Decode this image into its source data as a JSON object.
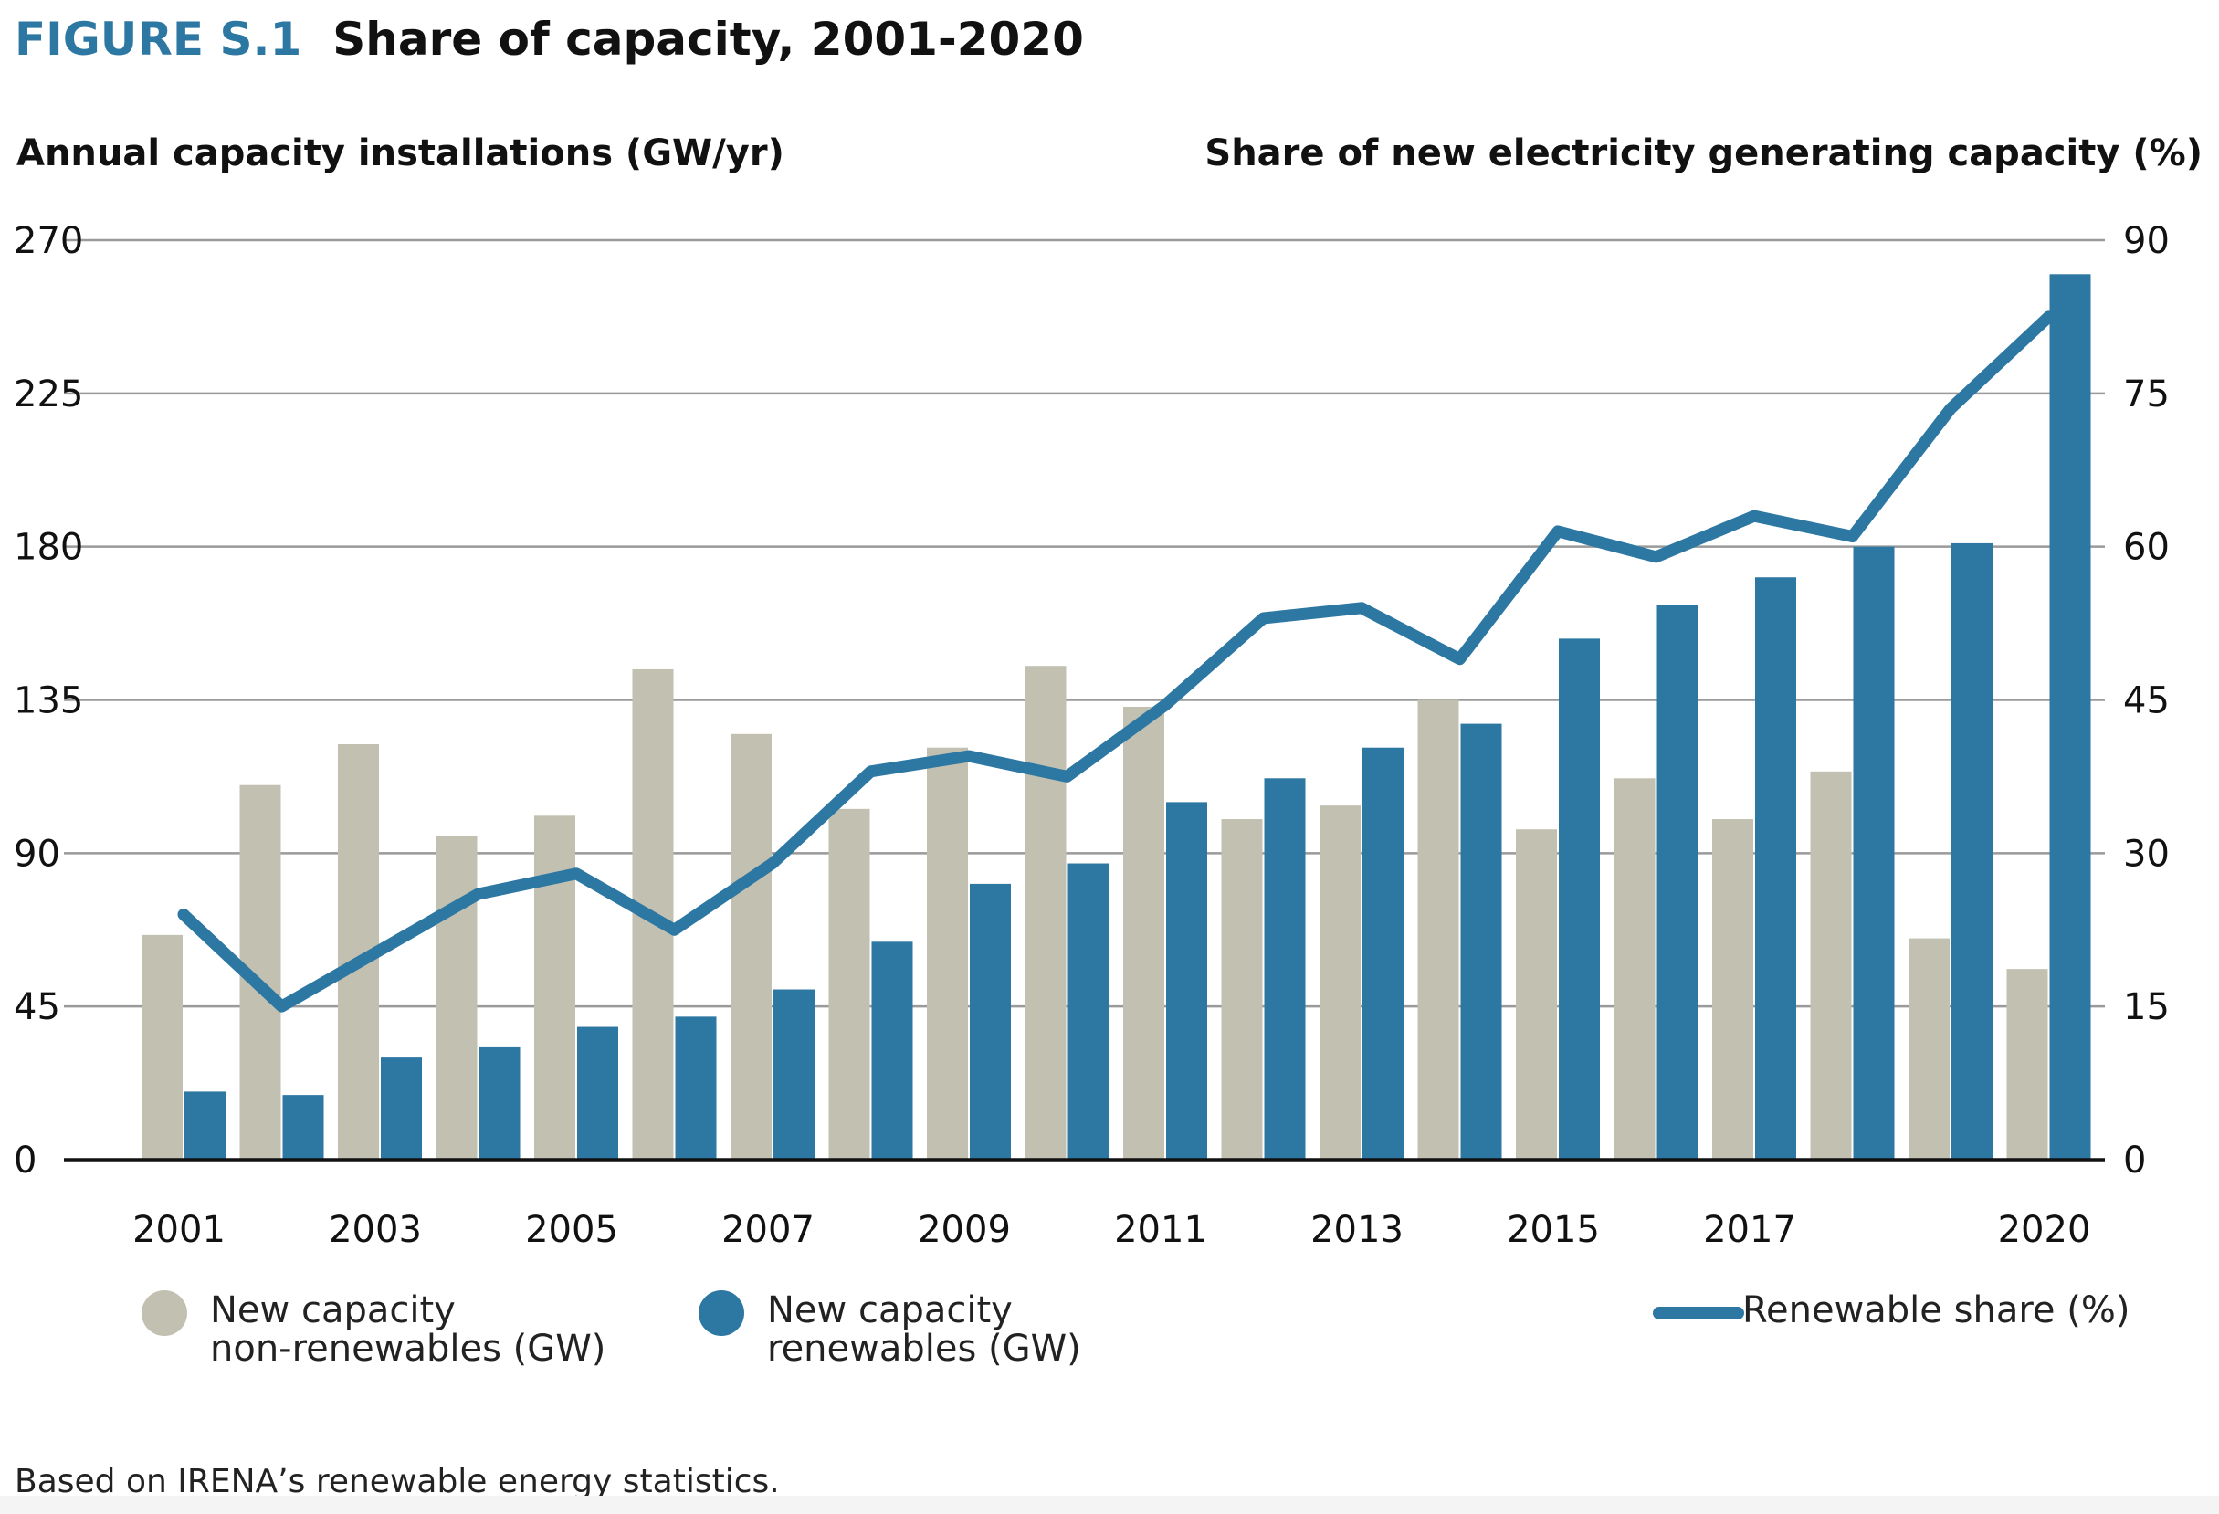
{
  "header": {
    "figure_label": "FIGURE S.1",
    "title": "Share of capacity, 2001-2020"
  },
  "note": "Based on IRENA’s renewable energy statistics.",
  "colors": {
    "non_renewable": "#c2c1b1",
    "renewable": "#2d77a3",
    "line": "#2d77a3",
    "grid": "#9a9a9a",
    "axis": "#111111"
  },
  "legend": {
    "non_renewable_line1": "New capacity",
    "non_renewable_line2": "non-renewables (GW)",
    "renewable_line1": "New capacity",
    "renewable_line2": "renewables (GW)",
    "share": "Renewable share (%)"
  },
  "chart_data": {
    "type": "bar",
    "ylabel_left": "Annual capacity installations (GW/yr)",
    "ylabel_right": "Share of new electricity generating capacity (%)",
    "ylim_left": [
      0,
      270
    ],
    "ylim_right": [
      0,
      90
    ],
    "yticks_left": [
      "0",
      "45",
      "90",
      "135",
      "180",
      "225",
      "270"
    ],
    "yticks_right": [
      "0",
      "15",
      "30",
      "45",
      "60",
      "75",
      "90"
    ],
    "grid": true,
    "categories": [
      "2001",
      "2002",
      "2003",
      "2004",
      "2005",
      "2006",
      "2007",
      "2008",
      "2009",
      "2010",
      "2011",
      "2012",
      "2013",
      "2014",
      "2015",
      "2016",
      "2017",
      "2018",
      "2019",
      "2020"
    ],
    "x_tick_labels": [
      "2001",
      "",
      "2003",
      "",
      "2005",
      "",
      "2007",
      "",
      "2009",
      "",
      "2011",
      "",
      "2013",
      "",
      "2015",
      "",
      "2017",
      "",
      "",
      "2020"
    ],
    "series": [
      {
        "name": "New capacity non-renewables (GW)",
        "axis": "left",
        "kind": "bar",
        "values": [
          66,
          110,
          122,
          95,
          101,
          144,
          125,
          103,
          121,
          145,
          133,
          100,
          104,
          135,
          97,
          112,
          100,
          114,
          65,
          56
        ]
      },
      {
        "name": "New capacity renewables (GW)",
        "axis": "left",
        "kind": "bar",
        "values": [
          20,
          19,
          30,
          33,
          39,
          42,
          50,
          64,
          81,
          87,
          105,
          112,
          121,
          128,
          153,
          163,
          171,
          180,
          181,
          260
        ]
      },
      {
        "name": "Renewable share (%)",
        "axis": "right",
        "kind": "line",
        "values": [
          24,
          15,
          20.5,
          26,
          28,
          22.5,
          29,
          38,
          39.5,
          37.5,
          44.5,
          53,
          54,
          49,
          61.5,
          59,
          63,
          61,
          73.5,
          82.5
        ]
      }
    ],
    "legend_position": "bottom"
  }
}
